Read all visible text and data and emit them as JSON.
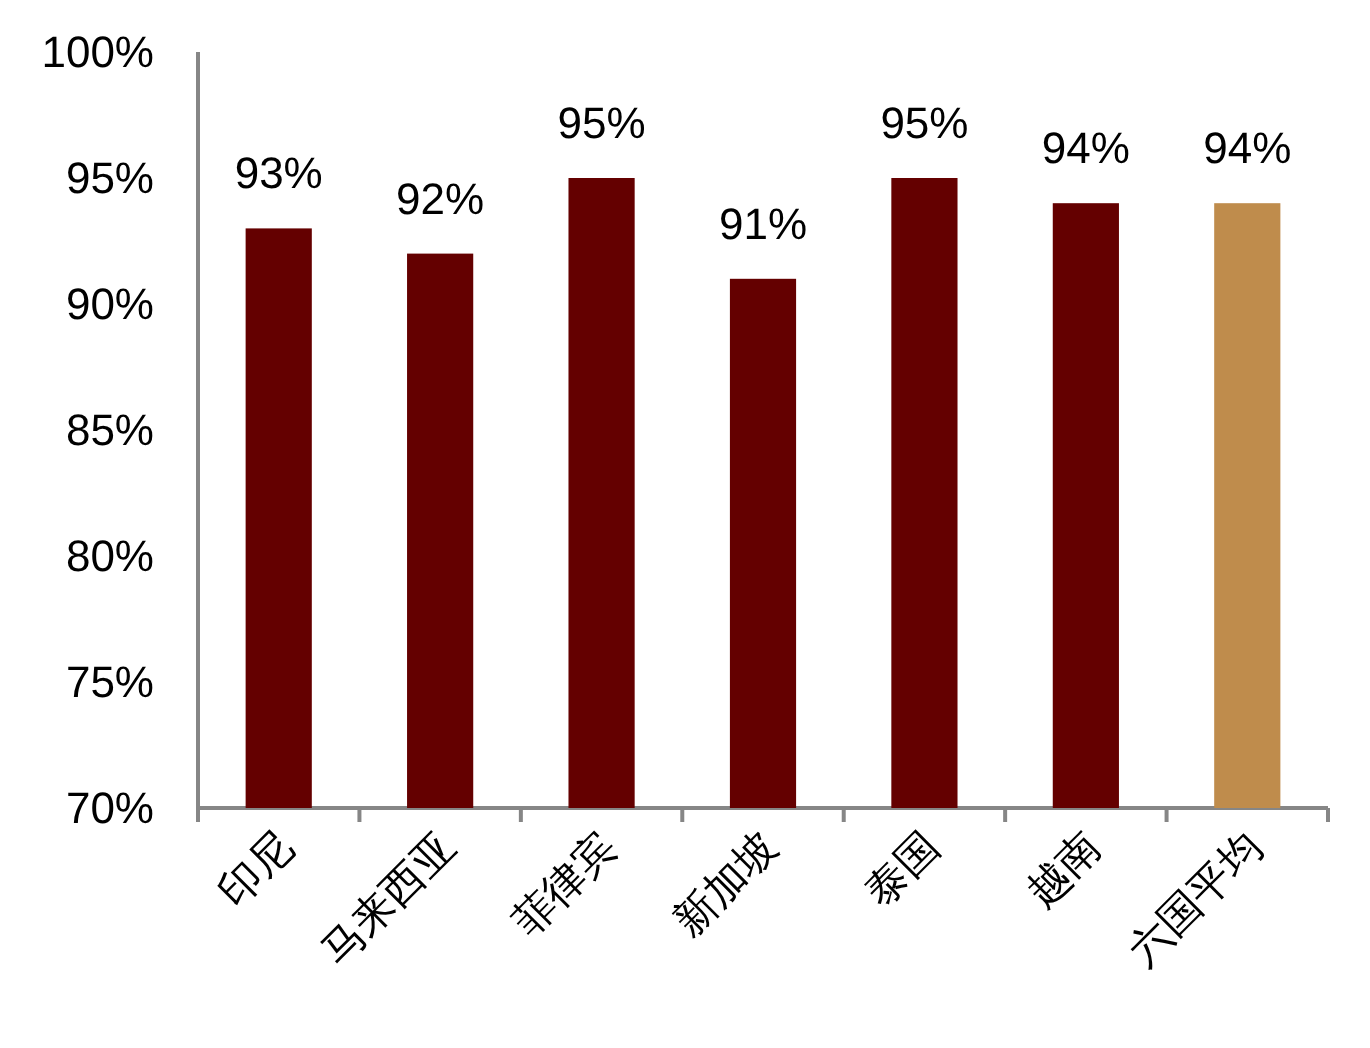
{
  "chart_data": {
    "type": "bar",
    "categories": [
      "印尼",
      "马来西亚",
      "菲律宾",
      "新加坡",
      "泰国",
      "越南",
      "六国平均"
    ],
    "values": [
      93,
      92,
      95,
      91,
      95,
      94,
      94
    ],
    "colors": [
      "#640000",
      "#640000",
      "#640000",
      "#640000",
      "#640000",
      "#640000",
      "#bf8c4c"
    ],
    "value_labels": [
      "93%",
      "92%",
      "95%",
      "91%",
      "95%",
      "94%",
      "94%"
    ],
    "ylim": [
      70,
      100
    ],
    "yticks": [
      {
        "value": 70,
        "label": "70%"
      },
      {
        "value": 75,
        "label": "75%"
      },
      {
        "value": 80,
        "label": "80%"
      },
      {
        "value": 85,
        "label": "85%"
      },
      {
        "value": 90,
        "label": "90%"
      },
      {
        "value": 95,
        "label": "95%"
      },
      {
        "value": 100,
        "label": "100%"
      }
    ]
  }
}
